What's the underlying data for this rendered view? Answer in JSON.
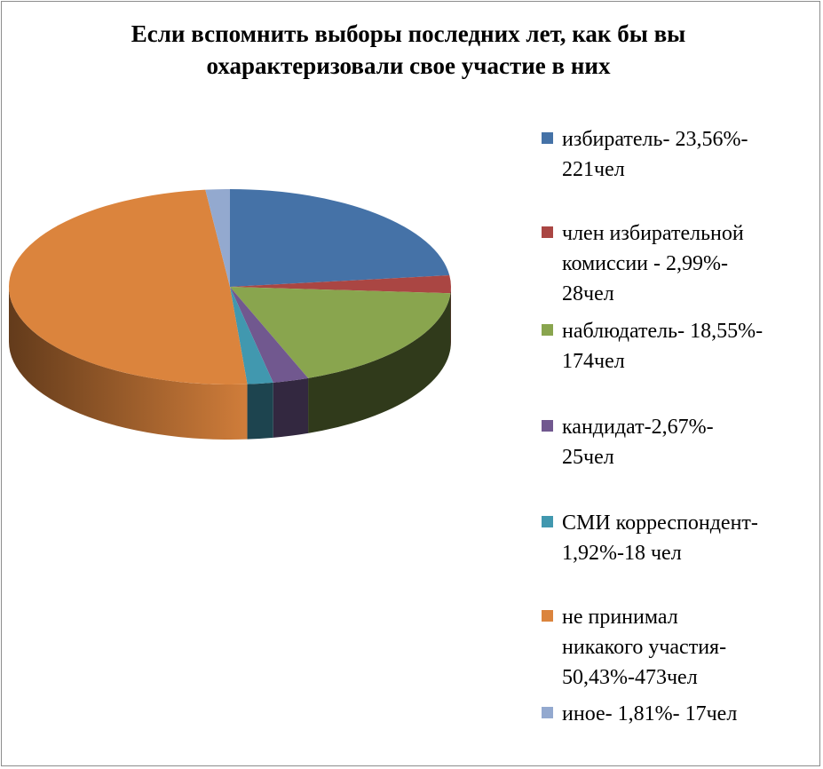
{
  "chart_data": {
    "type": "pie",
    "title_lines": [
      "Если вспомнить выборы последних лет, как бы вы",
      "охарактеризовали  свое участие  в них"
    ],
    "slices": [
      {
        "label": "избиратель- 23,56%-\n221чел",
        "value": 23.56,
        "count": 221,
        "color": "#4572a7"
      },
      {
        "label": "член избирательной\nкомиссии - 2,99%-\n28чел",
        "value": 2.99,
        "count": 28,
        "color": "#aa4643"
      },
      {
        "label": "наблюдатель- 18,55%-\n174чел",
        "value": 18.55,
        "count": 174,
        "color": "#89a54e"
      },
      {
        "label": "кандидат-2,67%-\n25чел",
        "value": 2.67,
        "count": 25,
        "color": "#71588f"
      },
      {
        "label": "СМИ корреспондент-\n1,92%-18  чел",
        "value": 1.92,
        "count": 18,
        "color": "#4198af"
      },
      {
        "label": "не принимал\nникакого участия-\n50,43%-473чел",
        "value": 50.43,
        "count": 473,
        "color": "#db843d"
      },
      {
        "label": "иное- 1,81%- 17чел",
        "value": 1.81,
        "count": 17,
        "color": "#93a9cf"
      }
    ],
    "legend_position": "right"
  }
}
